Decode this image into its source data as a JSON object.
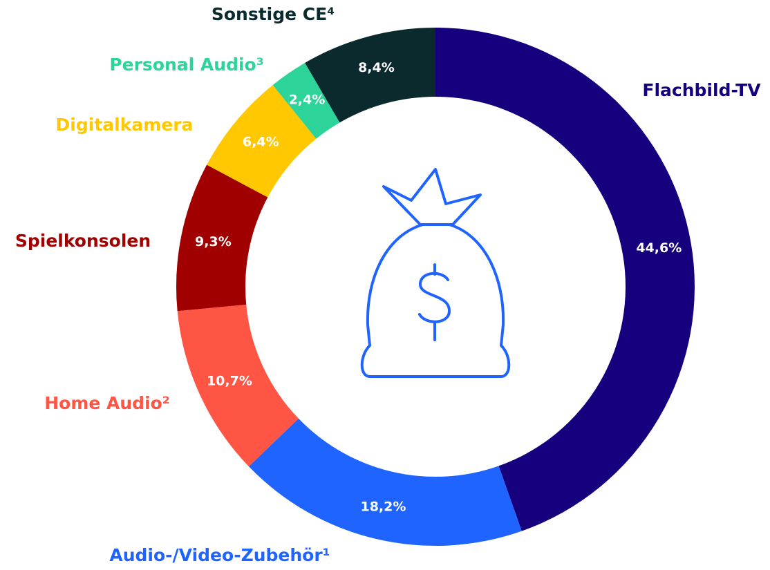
{
  "chart_data": {
    "type": "pie",
    "categories": [
      "Flachbild-TV",
      "Audio-/Video-Zubehör¹",
      "Home Audio²",
      "Spielkonsolen",
      "Digitalkamera",
      "Personal Audio³",
      "Sonstige CE⁴"
    ],
    "values": [
      44.6,
      18.2,
      10.7,
      9.3,
      6.4,
      2.4,
      8.4
    ],
    "value_labels": [
      "44,6%",
      "18,2%",
      "10,7%",
      "9,3%",
      "6,4%",
      "2,4%",
      "8,4%"
    ],
    "colors": [
      "#16007e",
      "#1f64ff",
      "#ff5545",
      "#a00000",
      "#ffc800",
      "#2dd49a",
      "#0b2a2e"
    ]
  }
}
